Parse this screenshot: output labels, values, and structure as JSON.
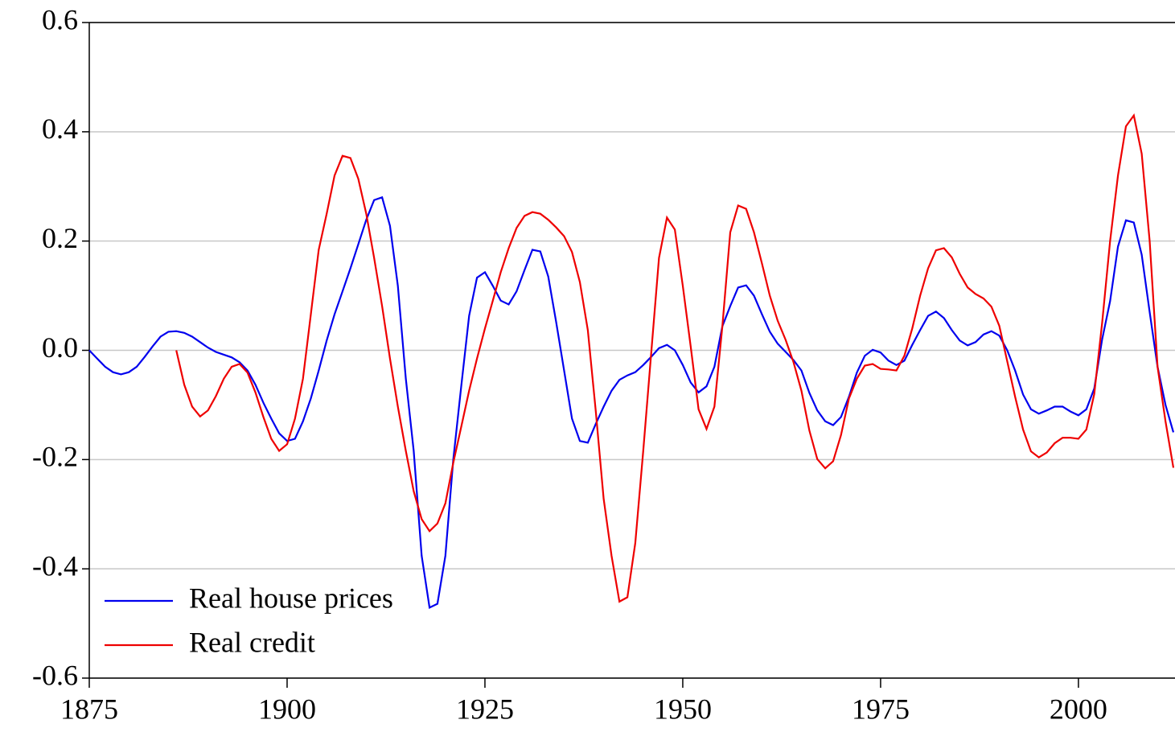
{
  "chart_data": {
    "type": "line",
    "x": [
      1875,
      1876,
      1877,
      1878,
      1879,
      1880,
      1881,
      1882,
      1883,
      1884,
      1885,
      1886,
      1887,
      1888,
      1889,
      1890,
      1891,
      1892,
      1893,
      1894,
      1895,
      1896,
      1897,
      1898,
      1899,
      1900,
      1901,
      1902,
      1903,
      1904,
      1905,
      1906,
      1907,
      1908,
      1909,
      1910,
      1911,
      1912,
      1913,
      1914,
      1915,
      1916,
      1917,
      1918,
      1919,
      1920,
      1921,
      1922,
      1923,
      1924,
      1925,
      1926,
      1927,
      1928,
      1929,
      1930,
      1931,
      1932,
      1933,
      1934,
      1935,
      1936,
      1937,
      1938,
      1939,
      1940,
      1941,
      1942,
      1943,
      1944,
      1945,
      1946,
      1947,
      1948,
      1949,
      1950,
      1951,
      1952,
      1953,
      1954,
      1955,
      1956,
      1957,
      1958,
      1959,
      1960,
      1961,
      1962,
      1963,
      1964,
      1965,
      1966,
      1967,
      1968,
      1969,
      1970,
      1971,
      1972,
      1973,
      1974,
      1975,
      1976,
      1977,
      1978,
      1979,
      1980,
      1981,
      1982,
      1983,
      1984,
      1985,
      1986,
      1987,
      1988,
      1989,
      1990,
      1991,
      1992,
      1993,
      1994,
      1995,
      1996,
      1997,
      1998,
      1999,
      2000,
      2001,
      2002,
      2003,
      2004,
      2005,
      2006,
      2007,
      2008,
      2009,
      2010,
      2011,
      2012
    ],
    "series": [
      {
        "name": "Real house prices",
        "color": "#0000ee",
        "values": [
          0,
          -0.015,
          -0.03,
          -0.04,
          -0.044,
          -0.04,
          -0.03,
          -0.012,
          0.007,
          0.025,
          0.034,
          0.035,
          0.032,
          0.025,
          0.015,
          0.005,
          -0.003,
          -0.008,
          -0.013,
          -0.022,
          -0.037,
          -0.063,
          -0.096,
          -0.125,
          -0.152,
          -0.166,
          -0.162,
          -0.13,
          -0.088,
          -0.037,
          0.018,
          0.066,
          0.108,
          0.15,
          0.194,
          0.239,
          0.275,
          0.28,
          0.228,
          0.118,
          -0.052,
          -0.184,
          -0.376,
          -0.471,
          -0.464,
          -0.376,
          -0.2,
          -0.066,
          0.063,
          0.133,
          0.143,
          0.118,
          0.091,
          0.084,
          0.108,
          0.147,
          0.184,
          0.181,
          0.135,
          0.052,
          -0.037,
          -0.125,
          -0.166,
          -0.169,
          -0.135,
          -0.103,
          -0.074,
          -0.054,
          -0.046,
          -0.04,
          -0.027,
          -0.012,
          0.004,
          0.01,
          0,
          -0.027,
          -0.059,
          -0.077,
          -0.066,
          -0.03,
          0.044,
          0.081,
          0.115,
          0.119,
          0.1,
          0.066,
          0.034,
          0.012,
          -0.003,
          -0.018,
          -0.037,
          -0.078,
          -0.11,
          -0.13,
          -0.137,
          -0.122,
          -0.085,
          -0.041,
          -0.01,
          0.001,
          -0.004,
          -0.019,
          -0.027,
          -0.019,
          0.01,
          0.037,
          0.063,
          0.071,
          0.059,
          0.037,
          0.018,
          0.009,
          0.015,
          0.029,
          0.035,
          0.027,
          0,
          -0.037,
          -0.081,
          -0.108,
          -0.116,
          -0.11,
          -0.103,
          -0.103,
          -0.112,
          -0.119,
          -0.108,
          -0.07,
          0.02,
          0.09,
          0.19,
          0.238,
          0.234,
          0.175,
          0.07,
          -0.03,
          -0.1,
          -0.15
        ]
      },
      {
        "name": "Real credit",
        "color": "#ee0000",
        "values": [
          null,
          null,
          null,
          null,
          null,
          null,
          null,
          null,
          null,
          null,
          null,
          0,
          -0.063,
          -0.103,
          -0.121,
          -0.11,
          -0.084,
          -0.052,
          -0.03,
          -0.025,
          -0.041,
          -0.077,
          -0.122,
          -0.162,
          -0.184,
          -0.172,
          -0.125,
          -0.052,
          0.066,
          0.184,
          0.25,
          0.32,
          0.356,
          0.352,
          0.314,
          0.25,
          0.169,
          0.081,
          -0.015,
          -0.103,
          -0.184,
          -0.258,
          -0.309,
          -0.331,
          -0.317,
          -0.28,
          -0.206,
          -0.14,
          -0.074,
          -0.015,
          0.04,
          0.091,
          0.143,
          0.187,
          0.224,
          0.246,
          0.253,
          0.25,
          0.239,
          0.225,
          0.209,
          0.18,
          0.125,
          0.037,
          -0.11,
          -0.272,
          -0.376,
          -0.46,
          -0.452,
          -0.353,
          -0.184,
          -0.007,
          0.169,
          0.243,
          0.221,
          0.118,
          0.007,
          -0.108,
          -0.144,
          -0.103,
          0.044,
          0.216,
          0.265,
          0.259,
          0.216,
          0.159,
          0.1,
          0.054,
          0.019,
          -0.022,
          -0.074,
          -0.147,
          -0.199,
          -0.216,
          -0.203,
          -0.155,
          -0.088,
          -0.052,
          -0.028,
          -0.025,
          -0.034,
          -0.035,
          -0.037,
          -0.01,
          0.04,
          0.1,
          0.15,
          0.183,
          0.187,
          0.17,
          0.14,
          0.115,
          0.103,
          0.095,
          0.08,
          0.045,
          -0.02,
          -0.085,
          -0.145,
          -0.185,
          -0.196,
          -0.187,
          -0.17,
          -0.16,
          -0.16,
          -0.162,
          -0.145,
          -0.08,
          0.05,
          0.2,
          0.32,
          0.41,
          0.43,
          0.36,
          0.2,
          -0.03,
          -0.13,
          -0.215
        ]
      }
    ],
    "xlim": [
      1875,
      2012
    ],
    "xticks": [
      1875,
      1900,
      1925,
      1950,
      1975,
      2000
    ],
    "ylim": [
      -0.6,
      0.6
    ],
    "yticks": [
      0.6,
      0.4,
      0.2,
      {
        "value": 0,
        "label": "0.0"
      },
      -0.2,
      -0.4,
      -0.6
    ],
    "grid": true,
    "legend": "lower left"
  }
}
